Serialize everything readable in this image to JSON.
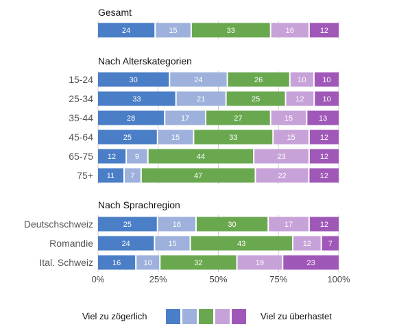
{
  "chart_data": {
    "type": "bar",
    "orientation": "horizontal",
    "stacked": true,
    "normalized": true,
    "xlim": [
      0,
      100
    ],
    "xticks": [
      "0%",
      "25%",
      "50%",
      "75%",
      "100%"
    ],
    "grid": true,
    "colors": [
      "#4a7ec6",
      "#9db1dc",
      "#6aa84f",
      "#c7a2d8",
      "#a058b8"
    ],
    "sections": [
      {
        "title": "Gesamt",
        "rows": [
          {
            "label": "",
            "values": [
              24,
              15,
              33,
              16,
              12
            ]
          }
        ]
      },
      {
        "title": "Nach Alterskategorien",
        "rows": [
          {
            "label": "15-24",
            "values": [
              30,
              24,
              26,
              10,
              10
            ]
          },
          {
            "label": "25-34",
            "values": [
              33,
              21,
              25,
              12,
              10
            ]
          },
          {
            "label": "35-44",
            "values": [
              28,
              17,
              27,
              15,
              13
            ]
          },
          {
            "label": "45-64",
            "values": [
              25,
              15,
              33,
              15,
              12
            ]
          },
          {
            "label": "65-75",
            "values": [
              12,
              9,
              44,
              23,
              12
            ]
          },
          {
            "label": "75+",
            "values": [
              11,
              7,
              47,
              22,
              12
            ]
          }
        ]
      },
      {
        "title": "Nach Sprachregion",
        "rows": [
          {
            "label": "Deutschschweiz",
            "values": [
              25,
              16,
              30,
              17,
              12
            ]
          },
          {
            "label": "Romandie",
            "values": [
              24,
              15,
              43,
              12,
              7
            ]
          },
          {
            "label": "Ital. Schweiz",
            "values": [
              16,
              10,
              32,
              19,
              23
            ]
          }
        ]
      }
    ],
    "legend": {
      "position": "bottom",
      "left_label": "Viel zu zögerlich",
      "right_label": "Viel zu überhastet"
    }
  }
}
